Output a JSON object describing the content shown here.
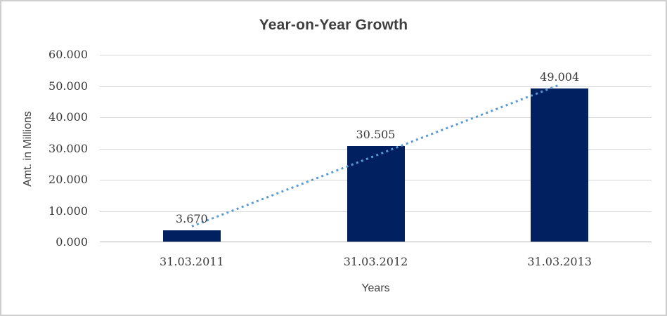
{
  "window": {
    "background_color": "#FFFFFF",
    "frame_border_color": "#CFCFCF"
  },
  "chart_data": {
    "type": "bar",
    "title": "Year-on-Year Growth",
    "xlabel": "Years",
    "ylabel": "Amt. in Millions",
    "categories": [
      "31.03.2011",
      "31.03.2012",
      "31.03.2013"
    ],
    "values": [
      3.67,
      30.505,
      49.004
    ],
    "data_labels": [
      "3.670",
      "30.505",
      "49.004"
    ],
    "ylim": [
      0,
      60
    ],
    "ytick_step": 10,
    "ytick_labels": [
      "0.000",
      "10.000",
      "20.000",
      "30.000",
      "40.000",
      "50.000",
      "60.000"
    ],
    "grid": true,
    "legend": false,
    "bar_color": "#002060",
    "gridline_color": "#D8D8D8",
    "axis_line_color": "#B5B5B5",
    "text_color": "#3F3F3F",
    "trendline": {
      "type": "linear",
      "style": "dotted",
      "color": "#5B9BD5",
      "start_value": 5.1,
      "end_value": 50.4
    }
  }
}
